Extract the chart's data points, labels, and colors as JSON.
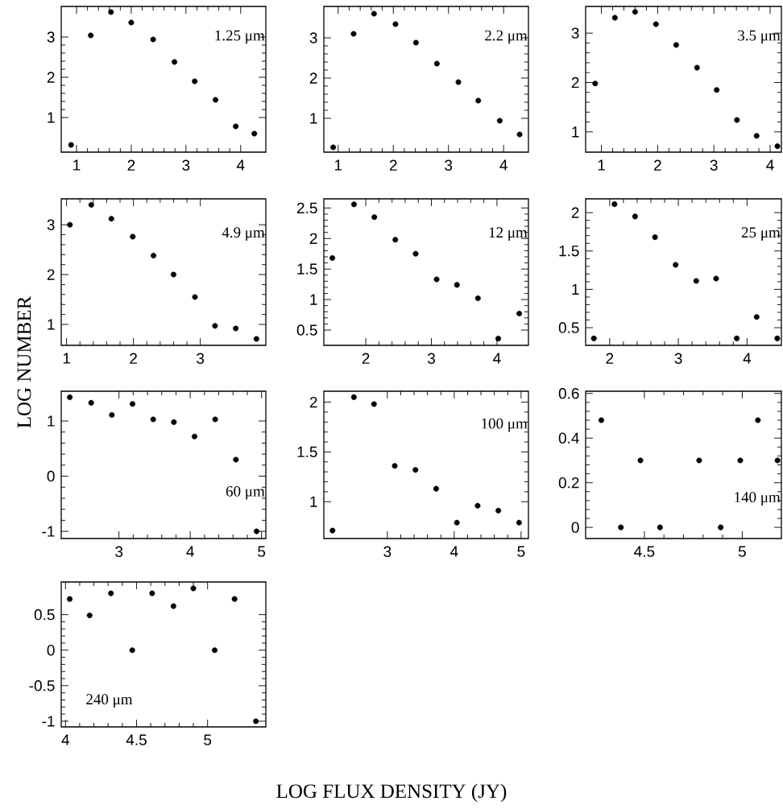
{
  "chart_data": [
    {
      "type": "scatter",
      "color": "#000000",
      "marker": "circle",
      "annotations": [
        "1.25 μm"
      ],
      "x": [
        0.9,
        1.26,
        1.63,
        2.0,
        2.4,
        2.79,
        3.16,
        3.54,
        3.91,
        4.25
      ],
      "values": [
        0.32,
        3.04,
        3.62,
        3.36,
        2.94,
        2.38,
        1.9,
        1.44,
        0.78,
        0.6
      ],
      "xlim": [
        0.72,
        4.46
      ],
      "ylim": [
        0.14,
        3.76
      ],
      "xticks": [
        1,
        2,
        3,
        4
      ],
      "yticks": [
        1,
        2,
        3
      ]
    },
    {
      "type": "scatter",
      "color": "#000000",
      "marker": "circle",
      "annotations": [
        "2.2 μm"
      ],
      "x": [
        0.91,
        1.28,
        1.65,
        2.04,
        2.41,
        2.79,
        3.18,
        3.54,
        3.93,
        4.29
      ],
      "values": [
        0.28,
        3.1,
        3.6,
        3.34,
        2.88,
        2.36,
        1.9,
        1.44,
        0.94,
        0.6
      ],
      "xlim": [
        0.74,
        4.45
      ],
      "ylim": [
        0.16,
        3.78
      ],
      "xticks": [
        1,
        2,
        3,
        4
      ],
      "yticks": [
        1,
        2,
        3
      ]
    },
    {
      "type": "scatter",
      "color": "#000000",
      "marker": "circle",
      "annotations": [
        "3.5 μm"
      ],
      "x": [
        0.89,
        1.24,
        1.6,
        1.97,
        2.33,
        2.7,
        3.05,
        3.41,
        3.76,
        4.13
      ],
      "values": [
        1.98,
        3.31,
        3.43,
        3.18,
        2.76,
        2.3,
        1.85,
        1.24,
        0.92,
        0.71
      ],
      "xlim": [
        0.72,
        4.2
      ],
      "ylim": [
        0.59,
        3.54
      ],
      "xticks": [
        1,
        2,
        3,
        4
      ],
      "yticks": [
        1,
        2,
        3
      ]
    },
    {
      "type": "scatter",
      "color": "#000000",
      "marker": "circle",
      "ylabel": "LOG NUMBER",
      "annotations": [
        "4.9 μm"
      ],
      "x": [
        1.05,
        1.37,
        1.67,
        1.99,
        2.3,
        2.6,
        2.92,
        3.22,
        3.53,
        3.84
      ],
      "values": [
        3.0,
        3.4,
        3.12,
        2.76,
        2.38,
        2.0,
        1.55,
        0.97,
        0.92,
        0.71
      ],
      "xlim": [
        0.92,
        3.98
      ],
      "ylim": [
        0.58,
        3.52
      ],
      "xticks": [
        1,
        2,
        3
      ],
      "yticks": [
        1,
        2,
        3
      ]
    },
    {
      "type": "scatter",
      "color": "#000000",
      "marker": "circle",
      "annotations": [
        "12 μm"
      ],
      "x": [
        1.49,
        1.82,
        2.13,
        2.45,
        2.76,
        3.08,
        3.39,
        3.71,
        4.02,
        4.34
      ],
      "values": [
        1.68,
        2.56,
        2.35,
        1.98,
        1.75,
        1.33,
        1.24,
        1.02,
        0.36,
        0.77
      ],
      "xlim": [
        1.36,
        4.48
      ],
      "ylim": [
        0.25,
        2.65
      ],
      "xticks": [
        2,
        3,
        4
      ],
      "yticks": [
        0.5,
        1,
        1.5,
        2,
        2.5
      ]
    },
    {
      "type": "scatter",
      "color": "#000000",
      "marker": "circle",
      "annotations": [
        "25 μm"
      ],
      "x": [
        1.77,
        2.07,
        2.37,
        2.66,
        2.96,
        3.26,
        3.55,
        3.85,
        4.14,
        4.44
      ],
      "values": [
        0.36,
        2.11,
        1.95,
        1.68,
        1.32,
        1.11,
        1.14,
        0.36,
        0.64,
        0.36
      ],
      "xlim": [
        1.65,
        4.5
      ],
      "ylim": [
        0.27,
        2.18
      ],
      "xticks": [
        2,
        3,
        4
      ],
      "yticks": [
        0.5,
        1,
        1.5,
        2
      ]
    },
    {
      "type": "scatter",
      "color": "#000000",
      "marker": "circle",
      "annotations": [
        "60 μm"
      ],
      "x": [
        2.31,
        2.61,
        2.9,
        3.19,
        3.48,
        3.77,
        4.06,
        4.35,
        4.64,
        4.93
      ],
      "values": [
        1.43,
        1.33,
        1.11,
        1.31,
        1.03,
        0.98,
        0.72,
        1.03,
        0.3,
        -1.0
      ],
      "xlim": [
        2.19,
        5.06
      ],
      "ylim": [
        -1.13,
        1.54
      ],
      "xticks": [
        3,
        4,
        5
      ],
      "yticks": [
        -1,
        0,
        1
      ]
    },
    {
      "type": "scatter",
      "color": "#000000",
      "marker": "circle",
      "annotations": [
        "100 μm"
      ],
      "x": [
        2.18,
        2.5,
        2.8,
        3.11,
        3.42,
        3.73,
        4.04,
        4.35,
        4.66,
        4.97
      ],
      "values": [
        0.71,
        2.05,
        1.98,
        1.36,
        1.32,
        1.13,
        0.79,
        0.96,
        0.91,
        0.79
      ],
      "xlim": [
        2.05,
        5.11
      ],
      "ylim": [
        0.63,
        2.11
      ],
      "xticks": [
        3,
        4,
        5
      ],
      "yticks": [
        1,
        1.5,
        2
      ]
    },
    {
      "type": "scatter",
      "color": "#000000",
      "marker": "circle",
      "annotations": [
        "140 μm"
      ],
      "x": [
        4.28,
        4.38,
        4.48,
        4.58,
        4.78,
        4.89,
        4.99,
        5.08,
        5.18
      ],
      "values": [
        0.48,
        0,
        0.3,
        0,
        0.3,
        0,
        0.3,
        0.48,
        0.3
      ],
      "xlim": [
        4.2,
        5.2
      ],
      "ylim": [
        -0.05,
        0.61
      ],
      "xticks": [
        4.5,
        5
      ],
      "yticks": [
        0,
        0.2,
        0.4,
        0.6
      ]
    },
    {
      "type": "scatter",
      "color": "#000000",
      "marker": "circle",
      "xlabel": "LOG FLUX DENSITY (JY)",
      "annotations": [
        "240 μm"
      ],
      "x": [
        4.03,
        4.17,
        4.32,
        4.47,
        4.61,
        4.76,
        4.9,
        5.05,
        5.19,
        5.34
      ],
      "values": [
        0.72,
        0.49,
        0.8,
        0,
        0.8,
        0.62,
        0.87,
        0,
        0.72,
        -1.0
      ],
      "xlim": [
        3.97,
        5.41
      ],
      "ylim": [
        -1.08,
        0.96
      ],
      "xticks": [
        4,
        4.5,
        5
      ],
      "yticks": [
        -1,
        -0.5,
        0,
        0.5
      ]
    }
  ]
}
